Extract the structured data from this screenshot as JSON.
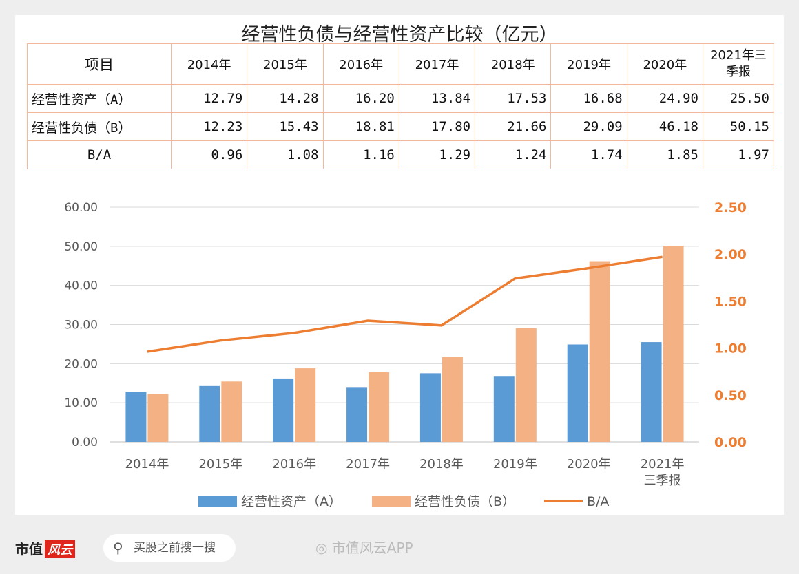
{
  "chart_data": {
    "type": "bar+line",
    "title": "经营性负债与经营性资产比较（亿元）",
    "table": {
      "header": [
        "项目",
        "2014年",
        "2015年",
        "2016年",
        "2017年",
        "2018年",
        "2019年",
        "2020年",
        "2021年三季报"
      ],
      "rows": [
        {
          "label": "经营性资产（A）",
          "values": [
            "12.79",
            "14.28",
            "16.20",
            "13.84",
            "17.53",
            "16.68",
            "24.90",
            "25.50"
          ]
        },
        {
          "label": "经营性负债（B）",
          "values": [
            "12.23",
            "15.43",
            "18.81",
            "17.80",
            "21.66",
            "29.09",
            "46.18",
            "50.15"
          ]
        },
        {
          "label": "B/A",
          "values": [
            "0.96",
            "1.08",
            "1.16",
            "1.29",
            "1.24",
            "1.74",
            "1.85",
            "1.97"
          ]
        }
      ]
    },
    "categories": [
      "2014年",
      "2015年",
      "2016年",
      "2017年",
      "2018年",
      "2019年",
      "2020年",
      "2021年\n三季报"
    ],
    "series": [
      {
        "name": "经营性资产（A）",
        "type": "bar",
        "axis": "left",
        "color": "#5b9bd5",
        "values": [
          12.79,
          14.28,
          16.2,
          13.84,
          17.53,
          16.68,
          24.9,
          25.5
        ]
      },
      {
        "name": "经营性负债（B）",
        "type": "bar",
        "axis": "left",
        "color": "#f4b183",
        "values": [
          12.23,
          15.43,
          18.81,
          17.8,
          21.66,
          29.09,
          46.18,
          50.15
        ]
      },
      {
        "name": "B/A",
        "type": "line",
        "axis": "right",
        "color": "#ed7d31",
        "values": [
          0.96,
          1.08,
          1.16,
          1.29,
          1.24,
          1.74,
          1.85,
          1.97
        ]
      }
    ],
    "left_axis": {
      "ylim": [
        0,
        60
      ],
      "ticks": [
        "0.00",
        "10.00",
        "20.00",
        "30.00",
        "40.00",
        "50.00",
        "60.00"
      ]
    },
    "right_axis": {
      "ylim": [
        0,
        2.5
      ],
      "ticks": [
        "0.00",
        "0.50",
        "1.00",
        "1.50",
        "2.00",
        "2.50"
      ],
      "color": "#ed7d31"
    },
    "grid": true,
    "legend": "bottom"
  },
  "footer": {
    "brand": "市值",
    "brand_box": "风云",
    "search_placeholder": "买股之前搜一搜",
    "weibo_text": "市值风云APP"
  }
}
